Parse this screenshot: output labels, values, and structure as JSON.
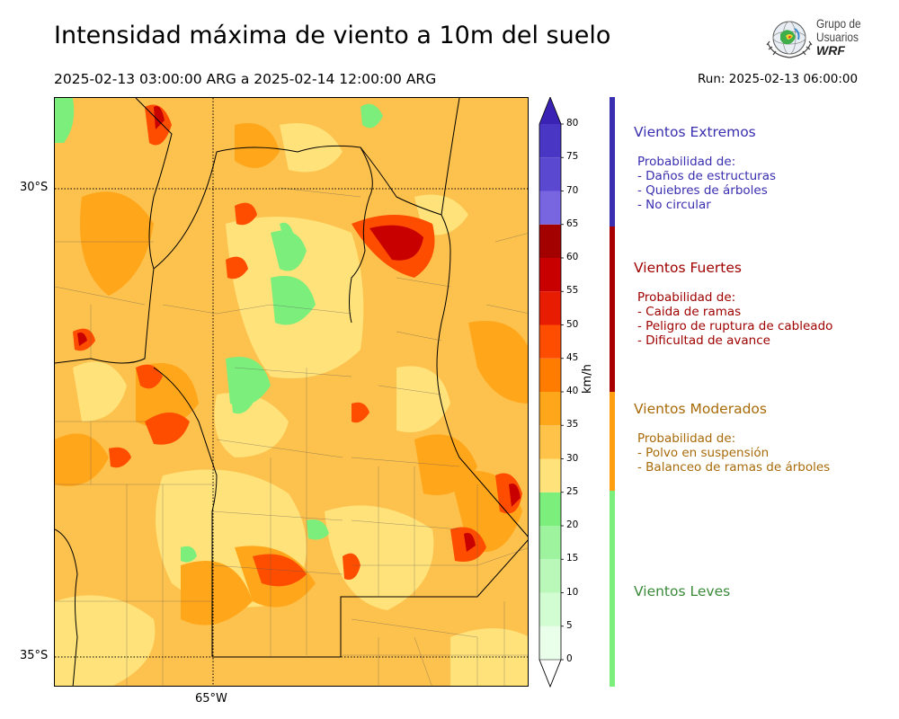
{
  "header": {
    "title": "Intensidad máxima de viento a 10m del suelo",
    "period": "2025-02-13 03:00:00 ARG  a  2025-02-14 12:00:00 ARG",
    "run": "Run: 2025-02-13 06:00:00"
  },
  "logo": {
    "line1": "Grupo de",
    "line2": "Usuarios",
    "line3": "WRF"
  },
  "map": {
    "lat_labels": [
      "30°S",
      "35°S"
    ],
    "lon_labels": [
      "65°W"
    ]
  },
  "colorbar": {
    "unit": "km/h",
    "ticks": [
      "0",
      "5",
      "10",
      "15",
      "20",
      "25",
      "30",
      "35",
      "40",
      "45",
      "50",
      "55",
      "60",
      "65",
      "70",
      "75",
      "80"
    ],
    "colors": [
      "#eaffea",
      "#d2fcd2",
      "#b9f8b9",
      "#9ef39e",
      "#7cee7c",
      "#ffe27a",
      "#ffc34a",
      "#ffa61a",
      "#ff7c00",
      "#ff4d00",
      "#e81c00",
      "#c80000",
      "#a30000",
      "#7766e0",
      "#5a48d0",
      "#4a36c4"
    ],
    "over_color": "#3a22b4"
  },
  "categories": [
    {
      "title": "Vientos Extremos",
      "color": "#3a2fb0",
      "lines": [
        "Probabilidad de:",
        "- Daños de estructuras",
        "- Quiebres de árboles",
        "- No circular"
      ]
    },
    {
      "title": "Vientos Fuertes",
      "color": "#a00000",
      "lines": [
        "Probabilidad de:",
        "- Caida de ramas",
        "- Peligro de ruptura de cableado",
        "- Dificultad de avance"
      ]
    },
    {
      "title": "Vientos Moderados",
      "color": "#a86a08",
      "lines": [
        "Probabilidad de:",
        "- Polvo en suspensión",
        "- Balanceo de ramas de árboles"
      ]
    },
    {
      "title": "Vientos Leves",
      "color": "#3a8a3a",
      "lines": []
    }
  ],
  "category_bar_colors": [
    "#3a2fb0",
    "#a80000",
    "#ff9e10",
    "#7cee7c"
  ]
}
